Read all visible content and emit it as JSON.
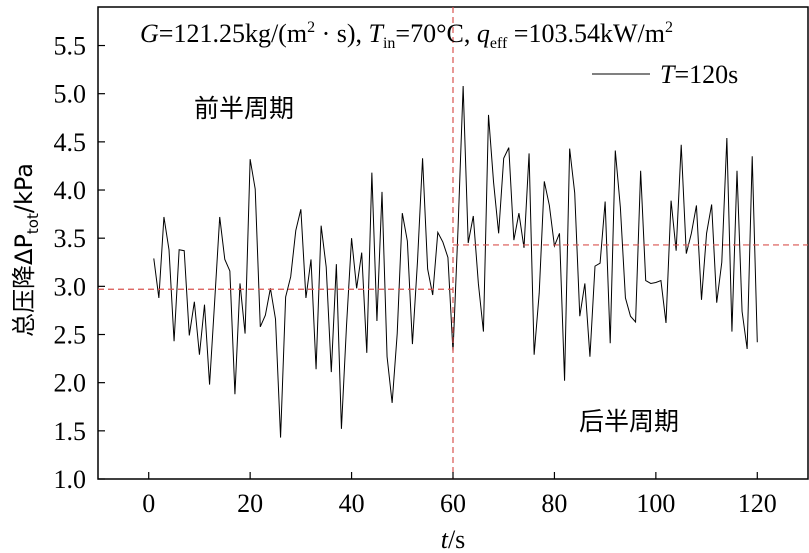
{
  "chart_data": {
    "type": "line",
    "title": "",
    "conditions": {
      "G_sym": "G",
      "G_val": "=121.25kg/(m",
      "G_sup": "2",
      "G_tail": " · s), ",
      "Tin_sym": "T",
      "Tin_sub": "in",
      "Tin_val": "=70°C, ",
      "q_sym": "q",
      "q_sub": "eff",
      "q_val": " =103.54kW/m",
      "q_sup": "2"
    },
    "xlabel": {
      "sym": "t",
      "unit": "/s"
    },
    "ylabel": {
      "prefix": "总压降ΔP",
      "sub": "tot",
      "unit": "/kPa"
    },
    "xlim": [
      -10,
      130
    ],
    "ylim": [
      1.0,
      5.9
    ],
    "xticks": [
      0,
      20,
      40,
      60,
      80,
      100,
      120
    ],
    "xtick_labels": [
      "0",
      "20",
      "40",
      "60",
      "80",
      "100",
      "120"
    ],
    "yticks": [
      1.0,
      1.5,
      2.0,
      2.5,
      3.0,
      3.5,
      4.0,
      4.5,
      5.0,
      5.5
    ],
    "ytick_labels": [
      "1.0",
      "1.5",
      "2.0",
      "2.5",
      "3.0",
      "3.5",
      "4.0",
      "4.5",
      "5.0",
      "5.5"
    ],
    "grid": false,
    "legend": {
      "position": "top-right",
      "sym": "T",
      "val": "=120s"
    },
    "annotations": {
      "first_half": "前半周期",
      "second_half": "后半周期"
    },
    "reference_lines": {
      "vertical_x": 60,
      "first_half_mean": 2.97,
      "second_half_mean": 3.43,
      "color": "#d9534f"
    },
    "series": [
      {
        "name": "T=120s",
        "color": "#000000",
        "x": [
          1,
          2,
          3,
          4,
          5,
          6,
          7,
          8,
          9,
          10,
          11,
          12,
          13,
          14,
          15,
          16,
          17,
          18,
          19,
          20,
          21,
          22,
          23,
          24,
          25,
          26,
          27,
          28,
          29,
          30,
          31,
          32,
          33,
          34,
          35,
          36,
          37,
          38,
          39,
          40,
          41,
          42,
          43,
          44,
          45,
          46,
          47,
          48,
          49,
          50,
          51,
          52,
          53,
          54,
          55,
          56,
          57,
          58,
          59,
          60,
          61,
          62,
          63,
          64,
          65,
          66,
          67,
          68,
          69,
          70,
          71,
          72,
          73,
          74,
          75,
          76,
          77,
          78,
          79,
          80,
          81,
          82,
          83,
          84,
          85,
          86,
          87,
          88,
          89,
          90,
          91,
          92,
          93,
          94,
          95,
          96,
          97,
          98,
          99,
          100,
          101,
          102,
          103,
          104,
          105,
          106,
          107,
          108,
          109,
          110,
          111,
          112,
          113,
          114,
          115,
          116,
          117,
          118,
          119,
          120
        ],
        "values": [
          3.29,
          2.88,
          3.72,
          3.38,
          2.43,
          3.38,
          3.37,
          2.49,
          2.84,
          2.29,
          2.81,
          1.98,
          2.84,
          3.72,
          3.28,
          3.16,
          1.88,
          3.03,
          2.51,
          4.32,
          4.01,
          2.58,
          2.7,
          2.98,
          2.66,
          1.43,
          2.89,
          3.1,
          3.58,
          3.8,
          2.88,
          3.28,
          2.14,
          3.63,
          3.2,
          2.11,
          3.23,
          1.52,
          2.59,
          3.5,
          2.98,
          3.35,
          2.31,
          4.18,
          2.64,
          3.98,
          2.27,
          1.79,
          2.51,
          3.76,
          3.47,
          2.4,
          3.26,
          4.33,
          3.18,
          2.91,
          3.56,
          3.46,
          3.3,
          2.32,
          3.61,
          5.08,
          3.45,
          3.73,
          3.03,
          2.53,
          4.78,
          4.08,
          3.55,
          4.33,
          4.44,
          3.48,
          3.76,
          3.4,
          4.38,
          2.29,
          2.93,
          4.09,
          3.84,
          3.42,
          3.55,
          2.02,
          4.43,
          3.97,
          2.69,
          3.03,
          2.27,
          3.21,
          3.24,
          3.88,
          2.41,
          4.41,
          3.82,
          2.88,
          2.69,
          2.63,
          4.2,
          3.06,
          3.03,
          3.04,
          3.06,
          2.62,
          3.89,
          3.37,
          4.47,
          3.34,
          3.55,
          3.84,
          2.86,
          3.55,
          3.85,
          2.83,
          3.25,
          4.54,
          2.53,
          4.2,
          2.74,
          2.35,
          4.35,
          2.42
        ]
      }
    ]
  }
}
